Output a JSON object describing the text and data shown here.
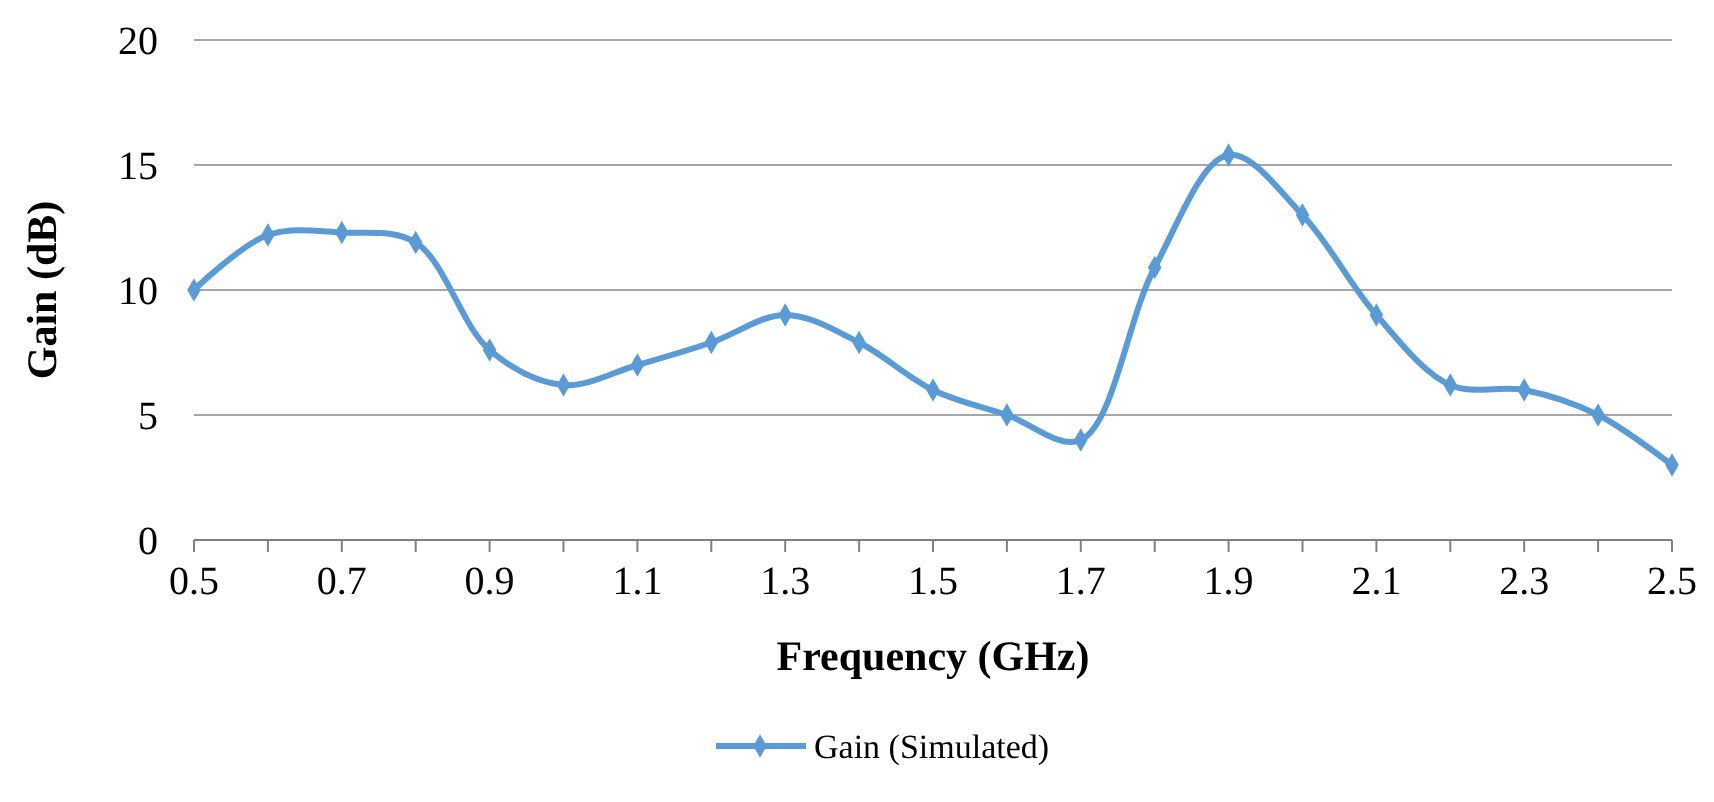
{
  "chart_data": {
    "type": "line",
    "xlabel": "Frequency (GHz)",
    "ylabel": "Gain (dB)",
    "x": [
      0.5,
      0.6,
      0.7,
      0.8,
      0.9,
      1.0,
      1.1,
      1.2,
      1.3,
      1.4,
      1.5,
      1.6,
      1.7,
      1.8,
      1.9,
      2.0,
      2.1,
      2.2,
      2.3,
      2.4,
      2.5
    ],
    "series": [
      {
        "name": "Gain (Simulated)",
        "color": "#5b9bd5",
        "values": [
          10,
          12.2,
          12.3,
          11.9,
          7.6,
          6.2,
          7.0,
          7.9,
          9.0,
          7.9,
          6.0,
          5.0,
          4.0,
          10.9,
          15.4,
          13.0,
          9.0,
          6.2,
          6.0,
          5.0,
          3.0
        ]
      }
    ],
    "xlim": [
      0.5,
      2.5
    ],
    "xticks": [
      0.5,
      {
        "value": 0.6,
        "label": null
      },
      0.7,
      {
        "value": 0.8,
        "label": null
      },
      0.9,
      {
        "value": 1.0,
        "label": null
      },
      1.1,
      {
        "value": 1.2,
        "label": null
      },
      1.3,
      {
        "value": 1.4,
        "label": null
      },
      1.5,
      {
        "value": 1.6,
        "label": null
      },
      1.7,
      {
        "value": 1.8,
        "label": null
      },
      1.9,
      {
        "value": 2.0,
        "label": null
      },
      2.1,
      {
        "value": 2.2,
        "label": null
      },
      2.3,
      {
        "value": 2.4,
        "label": null
      },
      2.5
    ],
    "ylim": [
      0,
      20
    ],
    "yticks": [
      0,
      5,
      10,
      15,
      20
    ],
    "grid": "y",
    "legend": "bottom",
    "marker": "diamond",
    "line_style": "solid"
  }
}
